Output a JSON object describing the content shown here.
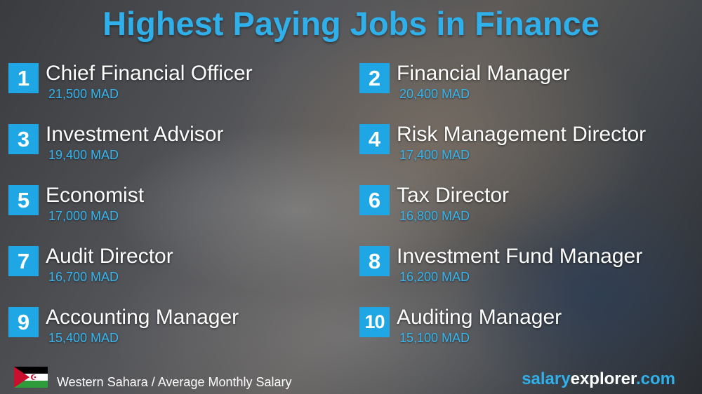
{
  "title": "Highest Paying Jobs in Finance",
  "accent_color": "#1ea7e4",
  "jobs": [
    {
      "rank": "1",
      "title": "Chief Financial Officer",
      "salary": "21,500 MAD"
    },
    {
      "rank": "2",
      "title": "Financial Manager",
      "salary": "20,400 MAD"
    },
    {
      "rank": "3",
      "title": "Investment Advisor",
      "salary": "19,400 MAD"
    },
    {
      "rank": "4",
      "title": "Risk Management Director",
      "salary": "17,400 MAD"
    },
    {
      "rank": "5",
      "title": "Economist",
      "salary": "17,000 MAD"
    },
    {
      "rank": "6",
      "title": "Tax Director",
      "salary": "16,800 MAD"
    },
    {
      "rank": "7",
      "title": "Audit Director",
      "salary": "16,700 MAD"
    },
    {
      "rank": "8",
      "title": "Investment Fund Manager",
      "salary": "16,200 MAD"
    },
    {
      "rank": "9",
      "title": "Accounting Manager",
      "salary": "15,400 MAD"
    },
    {
      "rank": "10",
      "title": "Auditing Manager",
      "salary": "15,100 MAD"
    }
  ],
  "footer": {
    "flag": "western-sahara-flag",
    "caption": "Western Sahara / Average Monthly Salary",
    "logo": {
      "part1": "salary",
      "part2": "explorer",
      "part3": ".com"
    }
  }
}
